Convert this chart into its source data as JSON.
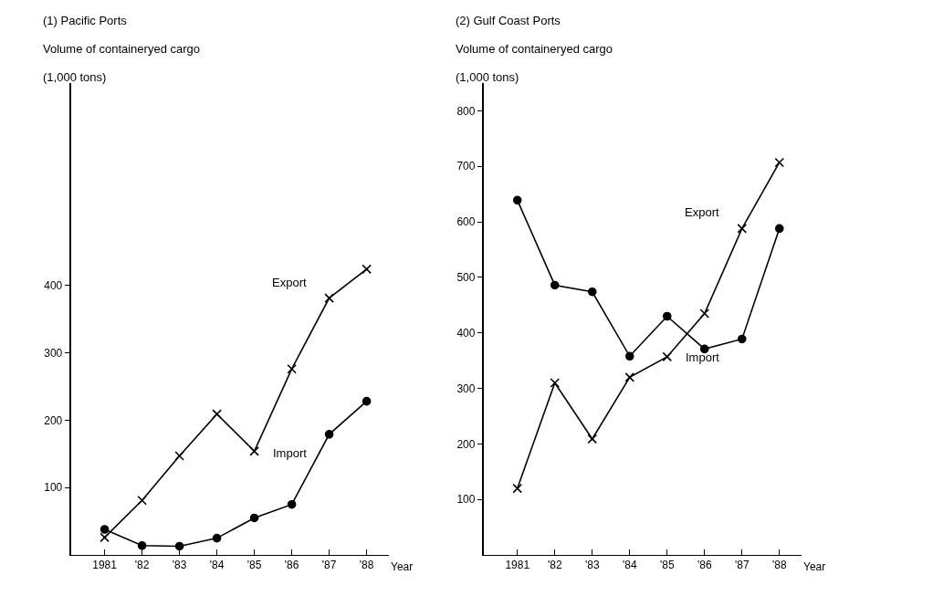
{
  "chart_data": [
    {
      "type": "line",
      "title": "(1) Pacific Ports",
      "subtitle": "Volume of containeryed cargo",
      "ylabel": "(1,000 tons)",
      "xlabel": "Year",
      "categories": [
        "1981",
        "'82",
        "'83",
        "'84",
        "'85",
        "'86",
        "'87",
        "'88"
      ],
      "ylim": [
        0,
        700
      ],
      "yticks": [
        100,
        200,
        300,
        400
      ],
      "line_style": "solid",
      "series": [
        {
          "name": "Export",
          "color": "#000000",
          "marker": "cross",
          "values": [
            26,
            81,
            147,
            209,
            154,
            276,
            381,
            424
          ]
        },
        {
          "name": "Import",
          "color": "#000000",
          "marker": "circle",
          "values": [
            38,
            14,
            13,
            25,
            55,
            75,
            179,
            228
          ]
        }
      ]
    },
    {
      "type": "line",
      "title": "(2) Gulf Coast Ports",
      "subtitle": "Volume of containeryed cargo",
      "ylabel": "(1,000 tons)",
      "xlabel": "Year",
      "categories": [
        "1981",
        "'82",
        "'83",
        "'84",
        "'85",
        "'86",
        "'87",
        "'88"
      ],
      "ylim": [
        0,
        850
      ],
      "yticks": [
        100,
        200,
        300,
        400,
        500,
        600,
        700,
        800
      ],
      "line_style": "solid",
      "series": [
        {
          "name": "Export",
          "color": "#000000",
          "marker": "cross",
          "values": [
            120,
            310,
            209,
            320,
            357,
            435,
            588,
            707
          ]
        },
        {
          "name": "Import",
          "color": "#000000",
          "marker": "circle",
          "values": [
            639,
            486,
            474,
            358,
            430,
            371,
            389,
            588
          ]
        }
      ]
    }
  ]
}
